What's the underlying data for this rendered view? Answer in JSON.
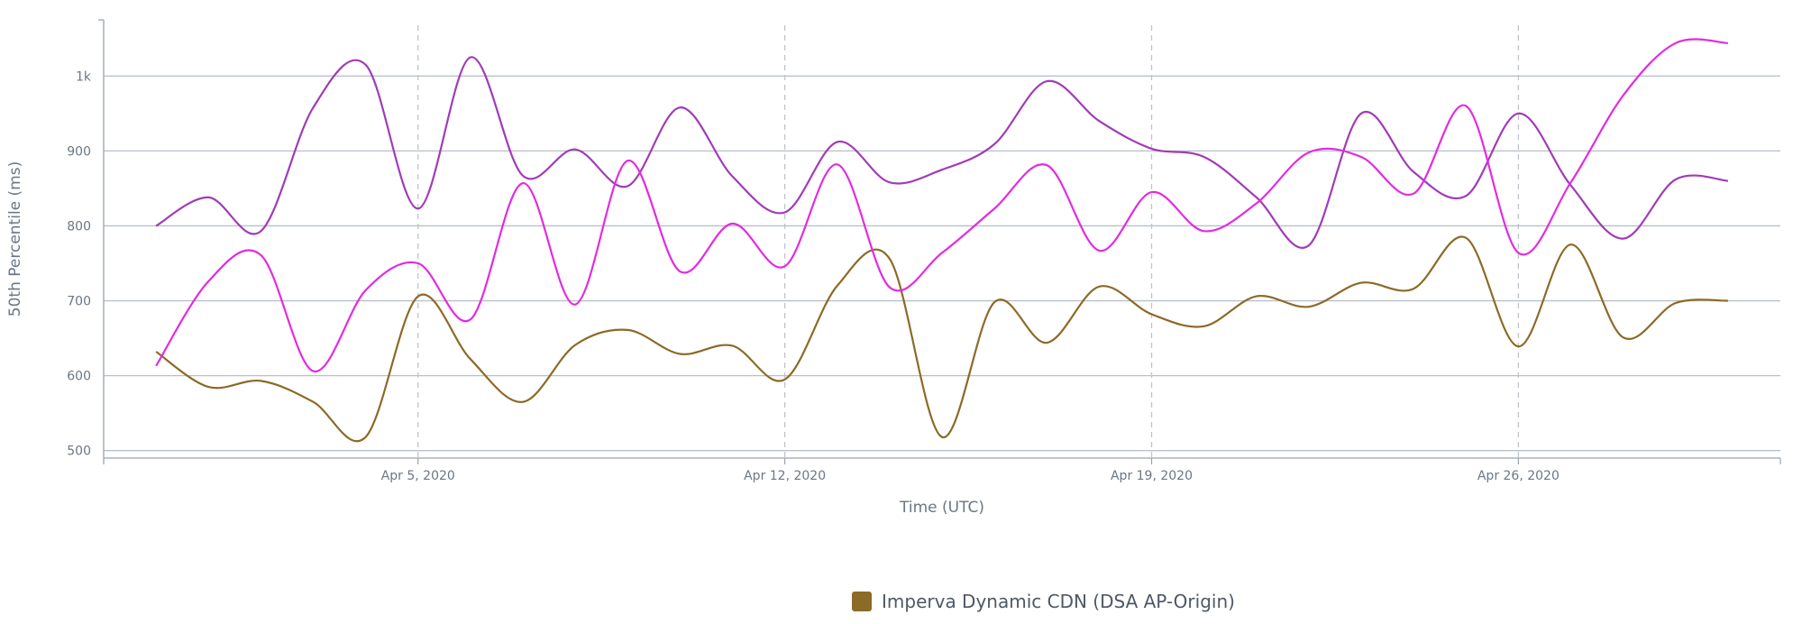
{
  "chart_data": {
    "type": "line",
    "title": "",
    "xlabel": "Time (UTC)",
    "ylabel": "50th Percentile (ms)",
    "ylim": [
      490,
      1075
    ],
    "xlim": [
      "2020-03-30",
      "2020-05-01"
    ],
    "y_ticks": [
      {
        "value": 500,
        "label": "500"
      },
      {
        "value": 600,
        "label": "600"
      },
      {
        "value": 700,
        "label": "700"
      },
      {
        "value": 800,
        "label": "800"
      },
      {
        "value": 900,
        "label": "900"
      },
      {
        "value": 1000,
        "label": "1k"
      }
    ],
    "x_ticks": [
      {
        "date": "2020-04-05",
        "label": "Apr 5, 2020"
      },
      {
        "date": "2020-04-12",
        "label": "Apr 12, 2020"
      },
      {
        "date": "2020-04-19",
        "label": "Apr 19, 2020"
      },
      {
        "date": "2020-04-26",
        "label": "Apr 26, 2020"
      }
    ],
    "grid": {
      "horizontal": true,
      "vertical_dashed": true
    },
    "legend_position": "bottom-center",
    "x": [
      "2020-03-31",
      "2020-04-01",
      "2020-04-02",
      "2020-04-03",
      "2020-04-04",
      "2020-04-05",
      "2020-04-06",
      "2020-04-07",
      "2020-04-08",
      "2020-04-09",
      "2020-04-10",
      "2020-04-11",
      "2020-04-12",
      "2020-04-13",
      "2020-04-14",
      "2020-04-15",
      "2020-04-16",
      "2020-04-17",
      "2020-04-18",
      "2020-04-19",
      "2020-04-20",
      "2020-04-21",
      "2020-04-22",
      "2020-04-23",
      "2020-04-24",
      "2020-04-25",
      "2020-04-26",
      "2020-04-27",
      "2020-04-28",
      "2020-04-29",
      "2020-04-30"
    ],
    "series": [
      {
        "name": "Imperva Dynamic CDN (DSA AP-Origin)",
        "color": "#8c6a27",
        "show_in_legend": true,
        "values": [
          632,
          585,
          593,
          565,
          518,
          706,
          622,
          565,
          641,
          661,
          629,
          640,
          595,
          720,
          756,
          518,
          698,
          644,
          719,
          682,
          666,
          706,
          692,
          724,
          716,
          784,
          639,
          775,
          651,
          697,
          700
        ]
      },
      {
        "color": "#a13bb8",
        "show_in_legend": false,
        "values": [
          800,
          838,
          793,
          958,
          1015,
          823,
          1025,
          867,
          902,
          853,
          958,
          866,
          818,
          912,
          858,
          875,
          909,
          993,
          940,
          903,
          892,
          838,
          774,
          950,
          872,
          840,
          950,
          854,
          783,
          862,
          860
        ]
      },
      {
        "color": "#e22be2",
        "show_in_legend": false,
        "values": [
          613,
          726,
          761,
          606,
          714,
          750,
          675,
          857,
          695,
          887,
          739,
          803,
          746,
          882,
          718,
          764,
          823,
          881,
          767,
          845,
          793,
          830,
          898,
          892,
          843,
          960,
          764,
          858,
          974,
          1044,
          1044
        ]
      }
    ]
  }
}
